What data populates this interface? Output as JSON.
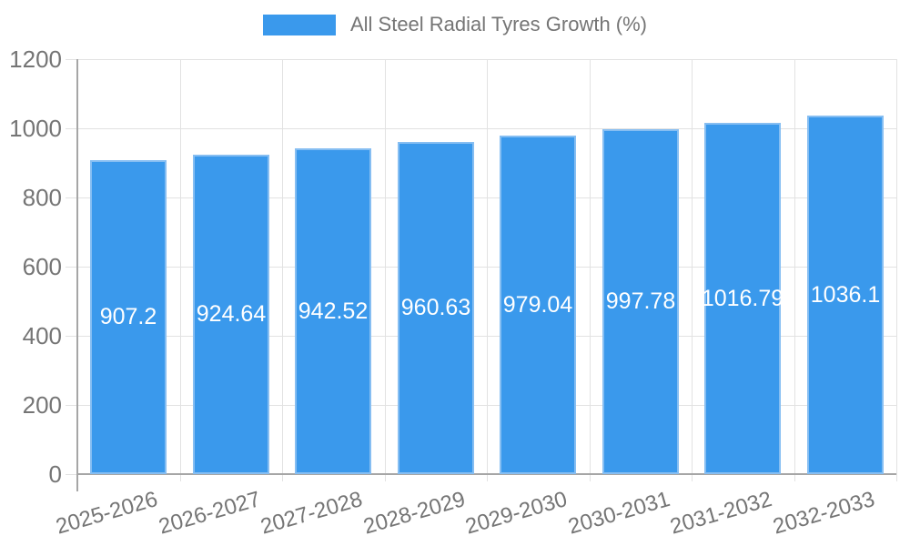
{
  "chart_data": {
    "type": "bar",
    "title": "All Steel Radial Tyres Growth (%)",
    "categories": [
      "2025-2026",
      "2026-2027",
      "2027-2028",
      "2028-2029",
      "2029-2030",
      "2030-2031",
      "2031-2032",
      "2032-2033"
    ],
    "series": [
      {
        "name": "All Steel Radial Tyres Growth (%)",
        "values": [
          907.2,
          924.64,
          942.52,
          960.63,
          979.04,
          997.78,
          1016.79,
          1036.1
        ]
      }
    ],
    "bar_labels": [
      "907.2",
      "924.64",
      "942.52",
      "960.63",
      "979.04",
      "997.78",
      "1016.79",
      "1036.1"
    ],
    "xlabel": "",
    "ylabel": "",
    "ylim": [
      0,
      1200
    ],
    "yticks": [
      0,
      200,
      400,
      600,
      800,
      1000,
      1200
    ],
    "ytick_labels": [
      "0",
      "200",
      "400",
      "600",
      "800",
      "1000",
      "1200"
    ],
    "grid": true,
    "legend_position": "top"
  },
  "colors": {
    "bar_fill": "#3a99ec",
    "bar_border": "#86bef2",
    "gridline": "#e2e2e2",
    "axis": "#a6a6a6",
    "tick": "#e2e2e2",
    "axis_text": "#757575",
    "bar_label_text": "#ffffff",
    "background": "#ffffff"
  }
}
